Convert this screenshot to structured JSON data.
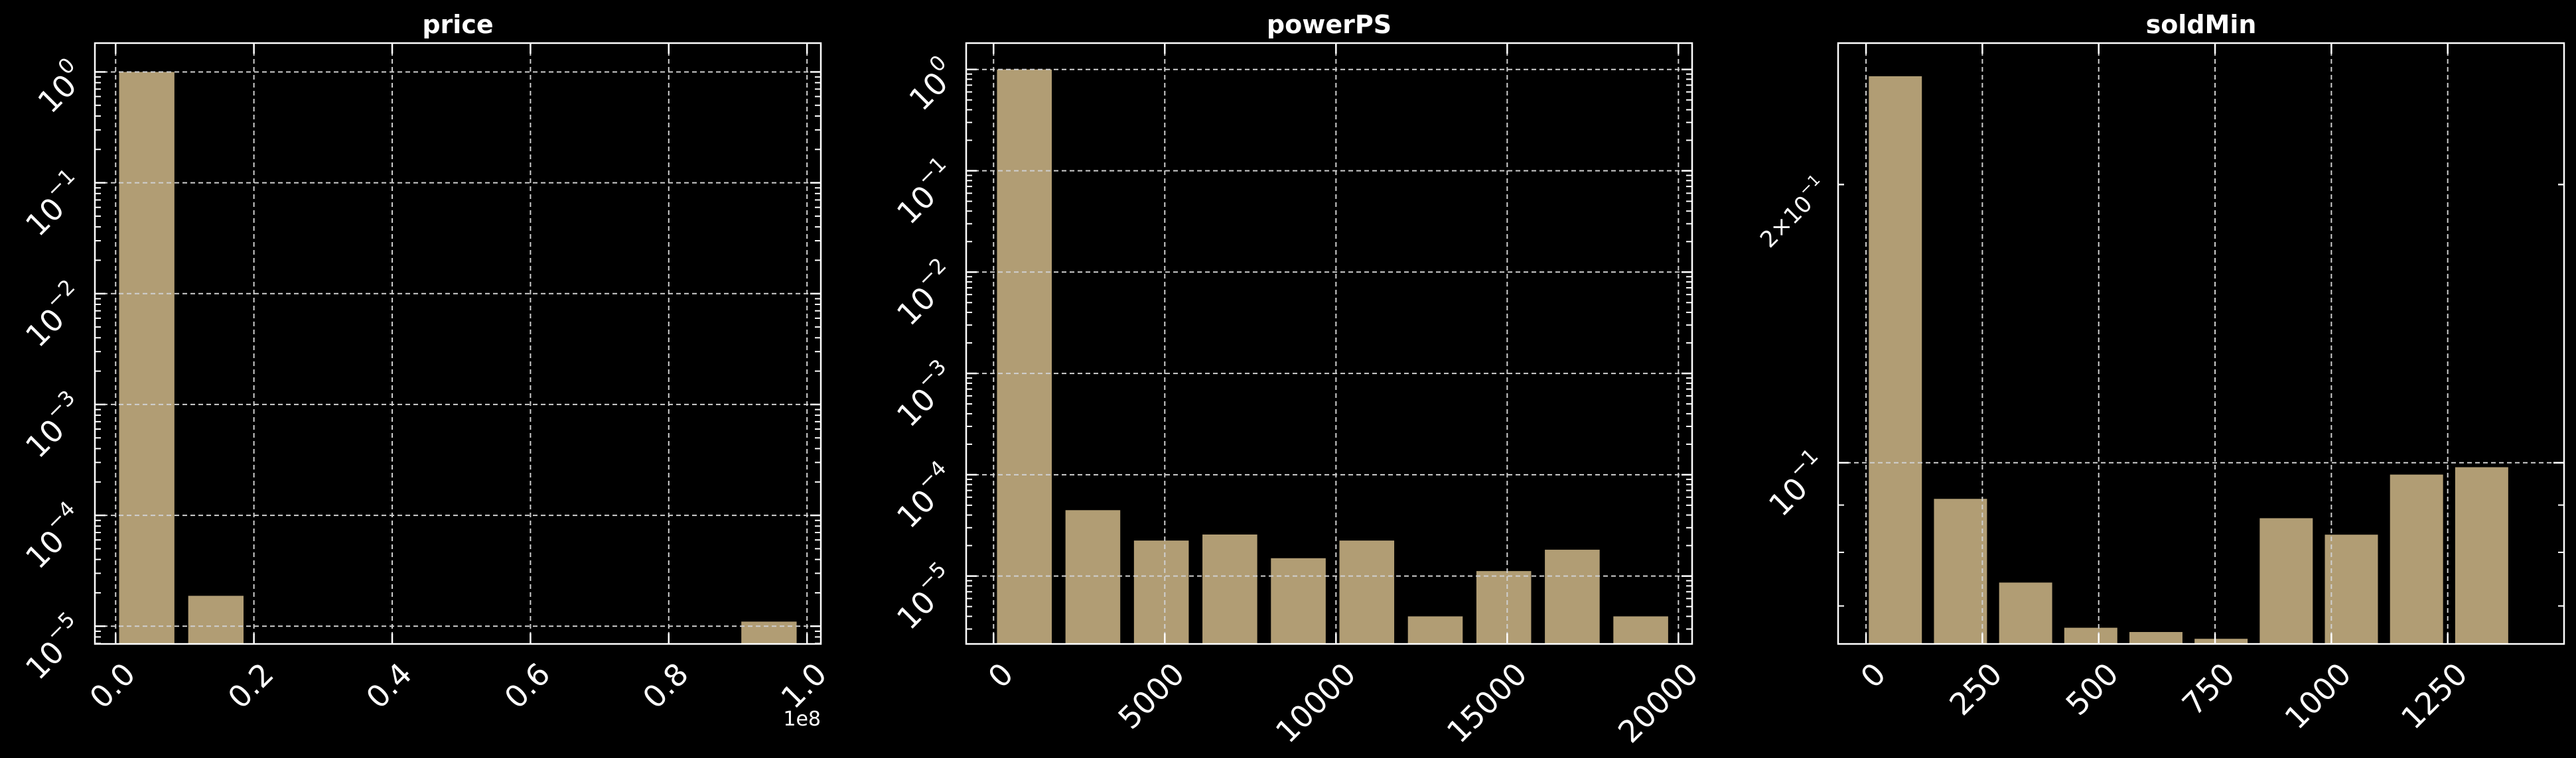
{
  "theme": {
    "background": "#000000",
    "bar_color": "#b19d74",
    "axis_color": "#ffffff",
    "grid_color": "#cfcfcf"
  },
  "chart_data": [
    {
      "type": "bar",
      "title": "price",
      "xlabel": "",
      "ylabel": "",
      "y_scale": "log",
      "x_scale_label": "1e8",
      "xlim": [
        -3000000,
        102000000
      ],
      "ylim_log10": [
        -5.16,
        0.26
      ],
      "x_ticks": [
        {
          "value": 0,
          "label": "0.0"
        },
        {
          "value": 20000000,
          "label": "0.2"
        },
        {
          "value": 40000000,
          "label": "0.4"
        },
        {
          "value": 60000000,
          "label": "0.6"
        },
        {
          "value": 80000000,
          "label": "0.8"
        },
        {
          "value": 100000000,
          "label": "1.0"
        }
      ],
      "y_ticks": [
        {
          "exp": 0,
          "base": "10",
          "sup": "0"
        },
        {
          "exp": -1,
          "base": "10",
          "sup": "−1"
        },
        {
          "exp": -2,
          "base": "10",
          "sup": "−2"
        },
        {
          "exp": -3,
          "base": "10",
          "sup": "−3"
        },
        {
          "exp": -4,
          "base": "10",
          "sup": "−4"
        },
        {
          "exp": -5,
          "base": "10",
          "sup": "−5"
        }
      ],
      "grid": true,
      "bars": [
        {
          "x0": 500000,
          "x1": 8500000,
          "value": 0.99998
        },
        {
          "x0": 10500000,
          "x1": 18500000,
          "value": 1.88e-05
        },
        {
          "x0": 90500000,
          "x1": 98500000,
          "value": 1.1e-05
        }
      ]
    },
    {
      "type": "bar",
      "title": "powerPS",
      "xlabel": "",
      "ylabel": "",
      "y_scale": "log",
      "xlim": [
        -800,
        20400
      ],
      "ylim_log10": [
        -5.67,
        0.26
      ],
      "x_ticks": [
        {
          "value": 0,
          "label": "0"
        },
        {
          "value": 5000,
          "label": "5000"
        },
        {
          "value": 10000,
          "label": "10000"
        },
        {
          "value": 15000,
          "label": "15000"
        },
        {
          "value": 20000,
          "label": "20000"
        }
      ],
      "y_ticks": [
        {
          "exp": 0,
          "base": "10",
          "sup": "0"
        },
        {
          "exp": -1,
          "base": "10",
          "sup": "−1"
        },
        {
          "exp": -2,
          "base": "10",
          "sup": "−2"
        },
        {
          "exp": -3,
          "base": "10",
          "sup": "−3"
        },
        {
          "exp": -4,
          "base": "10",
          "sup": "−4"
        },
        {
          "exp": -5,
          "base": "10",
          "sup": "−5"
        }
      ],
      "grid": true,
      "bars": [
        {
          "x0": 100,
          "x1": 1700,
          "value": 0.9997
        },
        {
          "x0": 2100,
          "x1": 3700,
          "value": 4.47e-05
        },
        {
          "x0": 4100,
          "x1": 5700,
          "value": 2.24e-05
        },
        {
          "x0": 6100,
          "x1": 7700,
          "value": 2.57e-05
        },
        {
          "x0": 8100,
          "x1": 9700,
          "value": 1.5e-05
        },
        {
          "x0": 10100,
          "x1": 11700,
          "value": 2.24e-05
        },
        {
          "x0": 12100,
          "x1": 13700,
          "value": 4e-06
        },
        {
          "x0": 14100,
          "x1": 15700,
          "value": 1.12e-05
        },
        {
          "x0": 16100,
          "x1": 17700,
          "value": 1.82e-05
        },
        {
          "x0": 18100,
          "x1": 19700,
          "value": 4e-06
        }
      ]
    },
    {
      "type": "bar",
      "title": "soldMin",
      "xlabel": "",
      "ylabel": "",
      "y_scale": "log",
      "xlim": [
        -60,
        1500
      ],
      "ylim_log10": [
        -1.196,
        -0.546
      ],
      "x_ticks": [
        {
          "value": 0,
          "label": "0"
        },
        {
          "value": 250,
          "label": "250"
        },
        {
          "value": 500,
          "label": "500"
        },
        {
          "value": 750,
          "label": "750"
        },
        {
          "value": 1000,
          "label": "1000"
        },
        {
          "value": 1250,
          "label": "1250"
        }
      ],
      "y_ticks": [
        {
          "exp": -1,
          "base": "10",
          "sup": "−1",
          "major": true
        },
        {
          "exp": -0.69897,
          "base": "2×10",
          "sup": "−1",
          "major": false
        }
      ],
      "grid": true,
      "bars": [
        {
          "x0": 6,
          "x1": 120,
          "value": 0.2619
        },
        {
          "x0": 146,
          "x1": 260,
          "value": 0.0914
        },
        {
          "x0": 286,
          "x1": 400,
          "value": 0.0742
        },
        {
          "x0": 426,
          "x1": 540,
          "value": 0.0663
        },
        {
          "x0": 566,
          "x1": 680,
          "value": 0.0656
        },
        {
          "x0": 706,
          "x1": 820,
          "value": 0.0645
        },
        {
          "x0": 846,
          "x1": 960,
          "value": 0.0871
        },
        {
          "x0": 986,
          "x1": 1100,
          "value": 0.0836
        },
        {
          "x0": 1126,
          "x1": 1240,
          "value": 0.0971
        },
        {
          "x0": 1266,
          "x1": 1380,
          "value": 0.0989
        }
      ]
    }
  ]
}
